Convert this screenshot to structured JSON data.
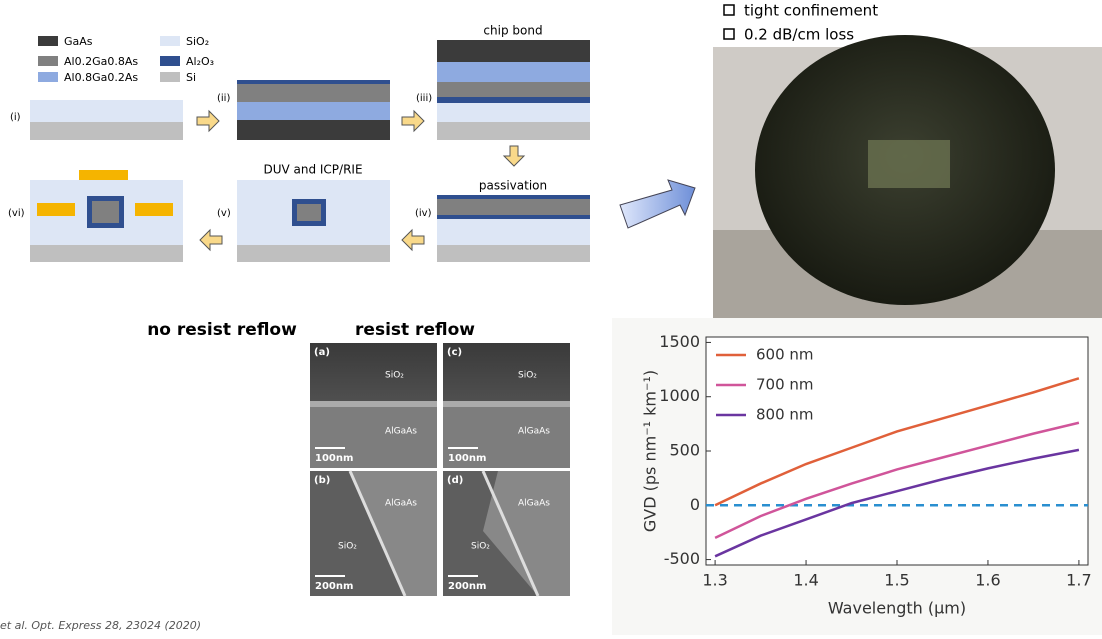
{
  "legend": [
    "GaAs",
    "Al0.2Ga0.8As",
    "Al0.8Ga0.2As",
    "SiO₂",
    "Al₂O₃",
    "Si"
  ],
  "steps": {
    "labels": [
      "(i)",
      "(ii)",
      "(iii)",
      "(iv)",
      "(v)",
      "(vi)"
    ],
    "titles": [
      "chip bond",
      "passivation",
      "DUV and ICP/RIE"
    ]
  },
  "features": [
    "tight confinement",
    "0.2 dB/cm loss"
  ],
  "sem": {
    "headers": [
      "no resist reflow",
      "resist reflow"
    ],
    "panels": [
      {
        "label": "(a)",
        "top": "SiO₂",
        "bottom": "AlGaAs",
        "scale": "100nm"
      },
      {
        "label": "(c)",
        "top": "SiO₂",
        "bottom": "AlGaAs",
        "scale": "100nm"
      },
      {
        "label": "(b)",
        "top": "AlGaAs",
        "bottom": "SiO₂",
        "scale": "200nm"
      },
      {
        "label": "(d)",
        "top": "AlGaAs",
        "bottom": "SiO₂",
        "scale": "200nm"
      }
    ]
  },
  "citation": "et al. Opt. Express 28, 23024 (2020)",
  "chart_data": {
    "type": "line",
    "xlabel": "Wavelength (µm)",
    "ylabel": "GVD (ps nm⁻¹ km⁻¹)",
    "x": [
      1.3,
      1.35,
      1.4,
      1.45,
      1.5,
      1.55,
      1.6,
      1.65,
      1.7
    ],
    "series": [
      {
        "name": "600 nm",
        "color": "#e0603a",
        "values": [
          0,
          200,
          380,
          530,
          680,
          800,
          920,
          1040,
          1170
        ]
      },
      {
        "name": "700 nm",
        "color": "#d0559a",
        "values": [
          -300,
          -100,
          60,
          200,
          330,
          440,
          550,
          660,
          760
        ]
      },
      {
        "name": "800 nm",
        "color": "#6a35a0",
        "values": [
          -470,
          -280,
          -130,
          20,
          130,
          240,
          340,
          430,
          510
        ]
      }
    ],
    "hline": 0,
    "hline_color": "#2a8fd0",
    "xlim": [
      1.29,
      1.71
    ],
    "xticks": [
      1.3,
      1.4,
      1.5,
      1.6,
      1.7
    ],
    "ylim": [
      -550,
      1550
    ],
    "yticks": [
      -500,
      0,
      500,
      1000,
      1500
    ]
  }
}
